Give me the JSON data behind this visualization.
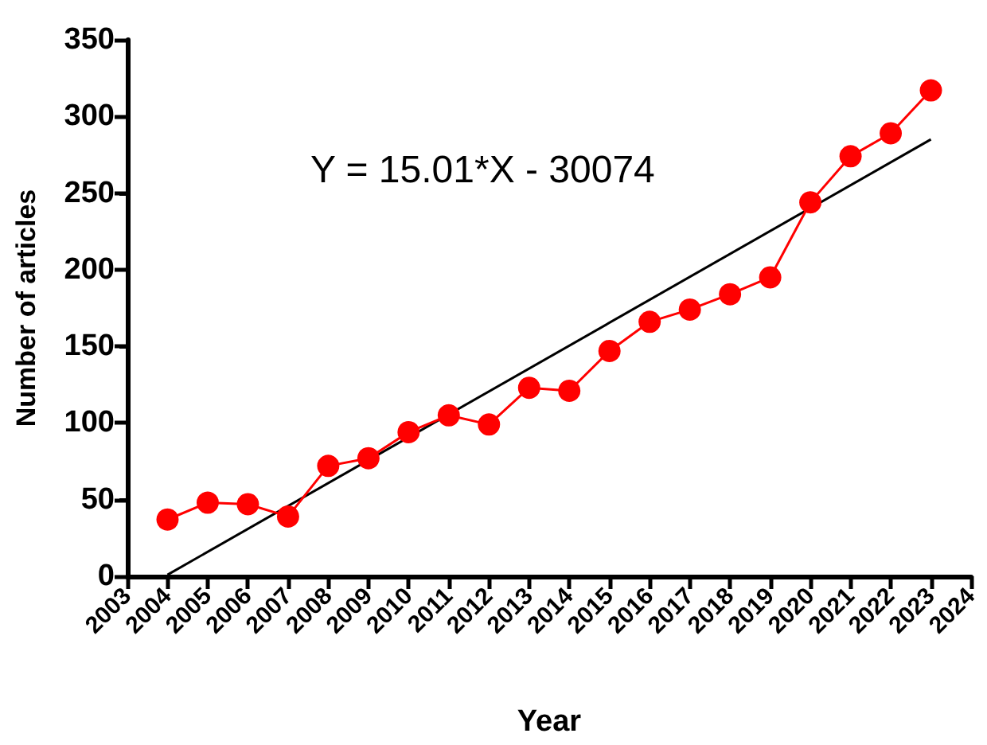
{
  "chart_data": {
    "type": "line",
    "xlabel": "Year",
    "ylabel": "Number of articles",
    "x": [
      2004,
      2005,
      2006,
      2007,
      2008,
      2009,
      2010,
      2011,
      2012,
      2013,
      2014,
      2015,
      2016,
      2017,
      2018,
      2019,
      2020,
      2021,
      2022,
      2023
    ],
    "series": [
      {
        "color": "#ff0000",
        "values": [
          37,
          48,
          47,
          39,
          72,
          77,
          94,
          105,
          99,
          123,
          121,
          147,
          166,
          174,
          184,
          195,
          244,
          274,
          289,
          317
        ],
        "marker": "circle"
      },
      {
        "type": "line",
        "color": "#000000",
        "x": [
          2004,
          2023
        ],
        "values": [
          1,
          285
        ],
        "marker": "none"
      }
    ],
    "xlim": [
      2003,
      2024
    ],
    "xticks": [
      2003,
      2004,
      2005,
      2006,
      2007,
      2008,
      2009,
      2010,
      2011,
      2012,
      2013,
      2014,
      2015,
      2016,
      2017,
      2018,
      2019,
      2020,
      2021,
      2022,
      2023,
      2024
    ],
    "ylim": [
      0,
      350
    ],
    "yticks": [
      0,
      50,
      100,
      150,
      200,
      250,
      300,
      350
    ],
    "annotations": [
      "Y = 15.01*X - 30074"
    ],
    "grid": false
  }
}
